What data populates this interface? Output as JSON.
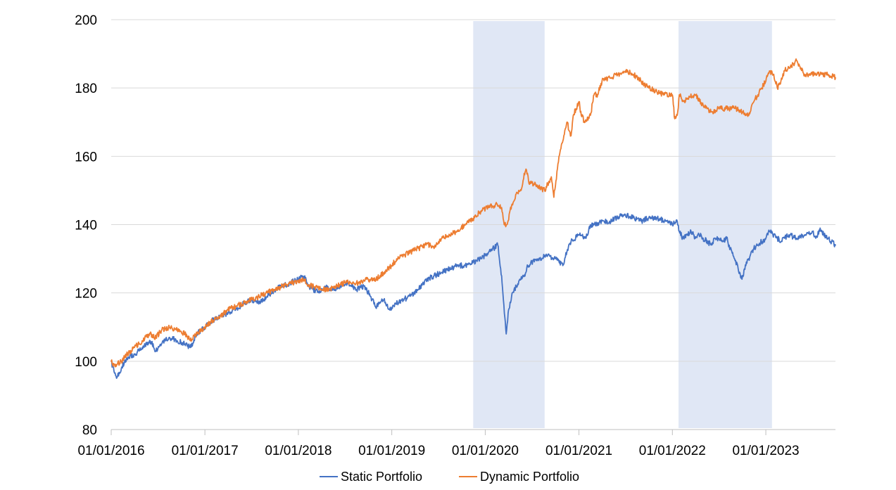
{
  "chart_data": {
    "type": "line",
    "title": "",
    "xlabel": "",
    "ylabel": "",
    "ylim": [
      80,
      200
    ],
    "yticks": [
      80,
      100,
      120,
      140,
      160,
      180,
      200
    ],
    "xlim": [
      "2016-01-01",
      "2023-09-30"
    ],
    "xticks": [
      "01/01/2016",
      "01/01/2017",
      "01/01/2018",
      "01/01/2019",
      "01/01/2020",
      "01/01/2021",
      "01/01/2022",
      "01/01/2023"
    ],
    "grid": "horizontal",
    "legend": "bottom-center",
    "shaded_periods": [
      {
        "start": "2019-11-15",
        "end": "2020-08-20"
      },
      {
        "start": "2022-01-25",
        "end": "2023-01-25"
      }
    ],
    "series": [
      {
        "name": "Static Portfolio",
        "color": "#4472c4",
        "x": [
          "2016-01-01",
          "2016-01-12",
          "2016-01-22",
          "2016-02-10",
          "2016-03-01",
          "2016-04-01",
          "2016-05-01",
          "2016-06-01",
          "2016-06-24",
          "2016-07-15",
          "2016-08-15",
          "2016-09-15",
          "2016-10-15",
          "2016-11-05",
          "2016-12-01",
          "2017-01-01",
          "2017-02-01",
          "2017-03-01",
          "2017-04-01",
          "2017-05-01",
          "2017-06-01",
          "2017-07-01",
          "2017-08-01",
          "2017-09-01",
          "2017-10-01",
          "2017-11-01",
          "2017-12-01",
          "2018-01-01",
          "2018-01-26",
          "2018-02-09",
          "2018-03-01",
          "2018-03-23",
          "2018-04-15",
          "2018-05-15",
          "2018-06-15",
          "2018-07-15",
          "2018-08-15",
          "2018-09-15",
          "2018-10-10",
          "2018-10-29",
          "2018-11-15",
          "2018-12-01",
          "2018-12-24",
          "2019-01-15",
          "2019-02-15",
          "2019-03-15",
          "2019-04-15",
          "2019-05-15",
          "2019-06-15",
          "2019-07-15",
          "2019-08-15",
          "2019-09-15",
          "2019-10-15",
          "2019-11-15",
          "2019-12-15",
          "2020-01-15",
          "2020-02-19",
          "2020-03-05",
          "2020-03-12",
          "2020-03-23",
          "2020-04-01",
          "2020-04-15",
          "2020-05-01",
          "2020-05-15",
          "2020-06-08",
          "2020-06-15",
          "2020-07-01",
          "2020-08-01",
          "2020-09-01",
          "2020-10-01",
          "2020-10-30",
          "2020-11-15",
          "2020-12-01",
          "2021-01-01",
          "2021-01-29",
          "2021-02-15",
          "2021-03-01",
          "2021-04-01",
          "2021-05-01",
          "2021-06-01",
          "2021-07-01",
          "2021-08-01",
          "2021-09-01",
          "2021-10-01",
          "2021-11-01",
          "2021-12-01",
          "2022-01-01",
          "2022-01-20",
          "2022-01-28",
          "2022-02-10",
          "2022-03-01",
          "2022-03-15",
          "2022-04-01",
          "2022-04-15",
          "2022-05-01",
          "2022-05-20",
          "2022-06-01",
          "2022-06-17",
          "2022-07-01",
          "2022-07-15",
          "2022-08-01",
          "2022-08-15",
          "2022-09-01",
          "2022-09-15",
          "2022-09-30",
          "2022-10-15",
          "2022-11-01",
          "2022-11-15",
          "2022-12-01",
          "2022-12-15",
          "2023-01-01",
          "2023-01-15",
          "2023-02-01",
          "2023-02-15",
          "2023-03-01",
          "2023-03-15",
          "2023-04-01",
          "2023-05-01",
          "2023-06-01",
          "2023-07-01",
          "2023-07-15",
          "2023-08-01",
          "2023-08-15",
          "2023-09-01",
          "2023-09-15",
          "2023-09-30"
        ],
        "values": [
          100,
          97,
          95,
          98,
          101,
          102,
          104,
          106,
          103,
          105,
          107,
          106,
          105,
          104,
          108,
          110,
          112,
          113,
          114,
          115,
          117,
          118,
          117,
          119,
          121,
          122,
          123,
          124,
          125,
          122,
          121,
          120,
          122,
          121,
          122,
          123,
          121,
          122,
          119,
          116,
          117,
          118,
          115,
          117,
          118,
          119,
          121,
          124,
          125,
          126,
          127,
          128,
          128,
          129,
          130,
          132,
          134,
          125,
          118,
          108,
          115,
          120,
          122,
          124,
          126,
          128,
          129,
          130,
          131,
          130,
          128,
          132,
          135,
          137,
          136,
          140,
          140,
          141,
          141,
          142,
          143,
          142,
          141,
          142,
          142,
          141,
          140,
          141,
          138,
          136,
          137,
          138,
          136,
          137,
          136,
          135,
          134,
          136,
          136,
          135,
          136,
          133,
          130,
          127,
          124,
          128,
          131,
          133,
          134,
          135,
          136,
          138,
          137,
          136,
          135,
          136,
          137,
          136,
          137,
          138,
          136,
          139,
          137,
          136,
          135,
          134
        ]
      },
      {
        "name": "Dynamic Portfolio",
        "color": "#ed7d31",
        "x": [
          "2016-01-01",
          "2016-01-12",
          "2016-01-22",
          "2016-02-10",
          "2016-03-01",
          "2016-04-01",
          "2016-05-01",
          "2016-06-01",
          "2016-06-24",
          "2016-07-15",
          "2016-08-15",
          "2016-09-15",
          "2016-10-15",
          "2016-11-05",
          "2016-12-01",
          "2017-01-01",
          "2017-02-01",
          "2017-03-01",
          "2017-04-01",
          "2017-05-01",
          "2017-06-01",
          "2017-07-01",
          "2017-08-01",
          "2017-09-01",
          "2017-10-01",
          "2017-11-01",
          "2017-12-01",
          "2018-01-01",
          "2018-01-26",
          "2018-02-09",
          "2018-03-01",
          "2018-04-01",
          "2018-05-01",
          "2018-06-01",
          "2018-07-01",
          "2018-08-01",
          "2018-09-01",
          "2018-10-01",
          "2018-11-01",
          "2018-12-01",
          "2019-01-01",
          "2019-01-20",
          "2019-02-15",
          "2019-03-15",
          "2019-04-15",
          "2019-05-15",
          "2019-06-01",
          "2019-06-15",
          "2019-07-15",
          "2019-08-15",
          "2019-09-15",
          "2019-10-15",
          "2019-11-01",
          "2019-11-20",
          "2019-12-15",
          "2020-01-15",
          "2020-02-15",
          "2020-03-05",
          "2020-03-15",
          "2020-03-25",
          "2020-04-15",
          "2020-05-01",
          "2020-05-20",
          "2020-06-01",
          "2020-06-10",
          "2020-06-20",
          "2020-07-15",
          "2020-08-01",
          "2020-08-20",
          "2020-09-01",
          "2020-09-15",
          "2020-09-25",
          "2020-10-15",
          "2020-11-01",
          "2020-11-15",
          "2020-12-01",
          "2020-12-10",
          "2021-01-01",
          "2021-01-10",
          "2021-01-25",
          "2021-02-15",
          "2021-03-01",
          "2021-03-15",
          "2021-04-01",
          "2021-05-01",
          "2021-06-01",
          "2021-07-01",
          "2021-08-01",
          "2021-09-01",
          "2021-10-01",
          "2021-11-01",
          "2021-12-01",
          "2022-01-01",
          "2022-01-10",
          "2022-01-20",
          "2022-01-28",
          "2022-02-15",
          "2022-03-01",
          "2022-04-01",
          "2022-05-01",
          "2022-06-01",
          "2022-07-01",
          "2022-08-01",
          "2022-09-01",
          "2022-10-01",
          "2022-10-15",
          "2022-11-01",
          "2022-11-15",
          "2022-12-01",
          "2022-12-15",
          "2023-01-01",
          "2023-01-15",
          "2023-02-01",
          "2023-02-15",
          "2023-03-01",
          "2023-03-15",
          "2023-04-01",
          "2023-05-01",
          "2023-06-01",
          "2023-07-01",
          "2023-08-01",
          "2023-09-01",
          "2023-09-30"
        ],
        "values": [
          100,
          99,
          99,
          100,
          102,
          104,
          106,
          108,
          107,
          109,
          110,
          109,
          108,
          106,
          108,
          110,
          112,
          113,
          115,
          116,
          117,
          118,
          119,
          120,
          121,
          122,
          123,
          123,
          124,
          122,
          122,
          121,
          121,
          122,
          123,
          123,
          123,
          124,
          124,
          126,
          128,
          130,
          131,
          132,
          133,
          134,
          134,
          133,
          136,
          137,
          138,
          140,
          141,
          142,
          144,
          145,
          146,
          145,
          140,
          140,
          146,
          149,
          150,
          155,
          156,
          152,
          152,
          151,
          150,
          152,
          154,
          148,
          160,
          165,
          170,
          166,
          172,
          176,
          172,
          170,
          172,
          178,
          178,
          182,
          183,
          184,
          185,
          184,
          182,
          180,
          179,
          178,
          178,
          171,
          172,
          178,
          176,
          177,
          178,
          175,
          173,
          174,
          174,
          174,
          173,
          172,
          173,
          176,
          178,
          180,
          182,
          185,
          184,
          180,
          182,
          185,
          186,
          188,
          184,
          184,
          184,
          184,
          183
        ]
      }
    ]
  }
}
